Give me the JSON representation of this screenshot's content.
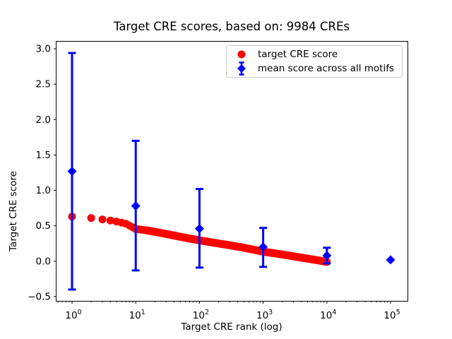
{
  "chart_data": {
    "type": "scatter",
    "title": "Target CRE scores, based on: 9984 CREs",
    "xlabel": "Target CRE rank (log)",
    "ylabel": "Target CRE score",
    "x_scale": "log",
    "grid": false,
    "legend_position": "upper right",
    "xlim": [
      0.556,
      184500
    ],
    "ylim": [
      -0.56,
      3.11
    ],
    "x_ticks": [
      1,
      10,
      100,
      1000,
      10000,
      100000
    ],
    "x_tick_labels": [
      "10^0",
      "10^1",
      "10^2",
      "10^3",
      "10^4",
      "10^5"
    ],
    "y_ticks": [
      3.0,
      2.5,
      2.0,
      1.5,
      1.0,
      0.5,
      0.0,
      -0.5
    ],
    "y_tick_labels": [
      "3.0",
      "2.5",
      "2.0",
      "1.5",
      "1.0",
      "0.5",
      "0.0",
      "−0.5"
    ],
    "legend": [
      {
        "label": "target CRE score",
        "marker": "circle",
        "color": "#ff0000"
      },
      {
        "label": "mean score across all motifs",
        "marker": "diamond-errorbar",
        "color": "#0000ff"
      }
    ],
    "series": [
      {
        "name": "target CRE score",
        "type": "scatter-band",
        "marker": "circle",
        "color": "#ff0000",
        "n_points": 9984,
        "control_points": {
          "rank": [
            1,
            2,
            3,
            4,
            5,
            7,
            10,
            15,
            20,
            30,
            50,
            70,
            100,
            200,
            300,
            500,
            1000,
            2000,
            4000,
            7000,
            9984
          ],
          "score": [
            0.63,
            0.61,
            0.59,
            0.575,
            0.56,
            0.53,
            0.455,
            0.435,
            0.415,
            0.385,
            0.345,
            0.32,
            0.295,
            0.25,
            0.225,
            0.19,
            0.135,
            0.095,
            0.05,
            0.015,
            -0.01
          ]
        }
      },
      {
        "name": "mean score across all motifs",
        "type": "errorbar",
        "marker": "diamond",
        "color": "#0000ff",
        "x": [
          1,
          10,
          100,
          1000,
          10000,
          100000
        ],
        "y": [
          1.27,
          0.78,
          0.46,
          0.2,
          0.08,
          0.02
        ],
        "err_upper": [
          1.67,
          0.92,
          0.56,
          0.27,
          0.11,
          0
        ],
        "err_lower": [
          1.67,
          0.91,
          0.55,
          0.28,
          0.11,
          0
        ]
      }
    ]
  }
}
